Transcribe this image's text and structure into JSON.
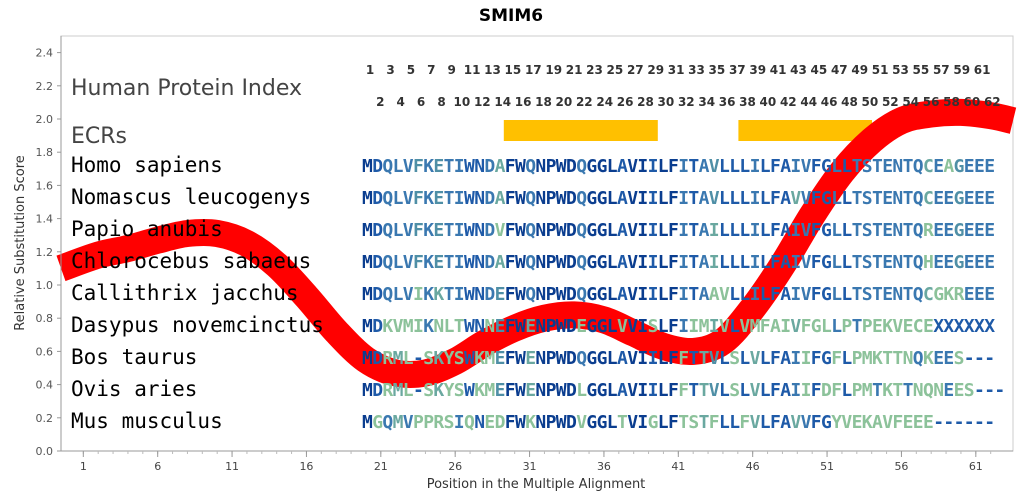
{
  "chart_data": {
    "type": "line",
    "title": "SMIM6",
    "xlabel": "Position in the Multiple Alignment",
    "ylabel": "Relative Substitution Score",
    "xlim": [
      -0.5,
      63.5
    ],
    "ylim": [
      0,
      2.5
    ],
    "x_ticks": [
      1,
      6,
      11,
      16,
      21,
      26,
      31,
      36,
      41,
      46,
      51,
      56,
      61
    ],
    "y_ticks": [
      "0.0",
      "0.2",
      "0.4",
      "0.6",
      "0.8",
      "1.0",
      "1.2",
      "1.4",
      "1.6",
      "1.8",
      "2.0",
      "2.2",
      "2.4"
    ],
    "grid": false,
    "series": [
      {
        "color": "#ff0000",
        "x": [
          -0.5,
          2,
          4,
          6,
          8,
          10,
          12,
          14,
          16,
          18,
          20,
          22,
          24,
          26,
          28,
          30,
          32,
          34,
          36,
          38,
          40,
          42,
          44,
          46,
          48,
          50,
          52,
          54,
          56,
          58,
          60,
          62,
          63.5
        ],
        "y": [
          1.1,
          1.18,
          1.22,
          1.27,
          1.31,
          1.31,
          1.25,
          1.12,
          0.93,
          0.72,
          0.55,
          0.47,
          0.47,
          0.54,
          0.65,
          0.74,
          0.8,
          0.82,
          0.79,
          0.71,
          0.63,
          0.6,
          0.66,
          0.86,
          1.12,
          1.42,
          1.68,
          1.87,
          1.99,
          2.03,
          2.04,
          2.02,
          1.99
        ]
      }
    ],
    "human_protein_index": {
      "odd": [
        "1",
        "3",
        "5",
        "7",
        "9",
        "11",
        "13",
        "15",
        "17",
        "19",
        "21",
        "23",
        "25",
        "27",
        "29",
        "31",
        "33",
        "35",
        "37",
        "39",
        "41",
        "43",
        "45",
        "47",
        "49",
        "51",
        "53",
        "55",
        "57",
        "59",
        "61"
      ],
      "even": [
        "2",
        "4",
        "6",
        "8",
        "10",
        "12",
        "14",
        "16",
        "18",
        "20",
        "22",
        "24",
        "26",
        "28",
        "30",
        "32",
        "34",
        "36",
        "38",
        "40",
        "42",
        "44",
        "46",
        "48",
        "50",
        "52",
        "54",
        "56",
        "58",
        "60",
        "62"
      ]
    },
    "ecrs": [
      {
        "start": 15,
        "end": 29,
        "color": "#ffc000"
      },
      {
        "start": 38,
        "end": 50,
        "color": "#ffc000"
      }
    ],
    "alignment": [
      {
        "species": "Homo sapiens",
        "sequence": "MDQLVFKETIWNDAFWQNPWDQGGLAVIILFITAVLLLILFAIVFGLLTSTENTQCEAGEEE"
      },
      {
        "species": "Nomascus leucogenys",
        "sequence": "MDQLVFKETIWNDAFWQNPWDQGGLAVIILFITAVLLLILFAVVFGLLTSTENTQCEEGEEE"
      },
      {
        "species": "Papio anubis",
        "sequence": "MDQLVFKETIWNDVFWQNPWDQGGLAVIILFITAILLLILFAIVFGLLTSTENTQREEGEEE"
      },
      {
        "species": "Chlorocebus sabaeus",
        "sequence": "MDQLVFKETIWNDAFWQNPWDQGGLAVIILFITAILLLILFAIVFGLLTSTENTQHEEGEEE"
      },
      {
        "species": "Callithrix jacchus",
        "sequence": "MDQLVIKKTIWNDEFWQNPWDQGGLAVIILFITAAVLLILFAIVFGLLTSTENTQCGKREEE"
      },
      {
        "species": "Dasypus novemcinctus",
        "sequence": "MDKVMIKNLTWNNEFWENPWDEGGLVVISLFIIMIVLVMFAIVFGLLPTPEKVECEXXXXXX"
      },
      {
        "species": "Bos taurus",
        "sequence": "MDRML-SKYSWKMEFWENPWDQGGLAVIILFFTTVLSLVLFAIIFGFLPMKTTNQKEES---"
      },
      {
        "species": "Ovis aries",
        "sequence": "MDRML-SKYSWKMEFWENPWDLGGLAVIILFFTTVLSLVLFAIIFDFLPMTKTTNQNEES---"
      },
      {
        "species": "Mus musculus",
        "sequence": "MGQMVPPRSIQNEDFWKNPWDVGGLTVIGLFTSTFLLFVLFAVVFGYVEKAVFEEE------"
      }
    ],
    "conservation_palette": [
      "#0a3d8f",
      "#1e5aa8",
      "#3a78b0",
      "#4f8fa6",
      "#6aa8a0",
      "#8cc29a"
    ]
  },
  "labels": {
    "human_protein_index": "Human Protein Index",
    "ecrs": "ECRs"
  }
}
